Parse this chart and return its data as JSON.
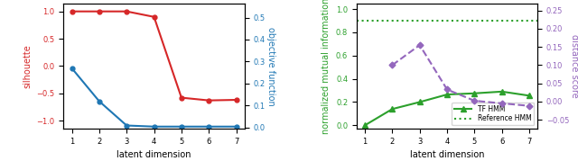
{
  "left": {
    "x": [
      1,
      2,
      3,
      4,
      5,
      6,
      7
    ],
    "silhouette": [
      1.0,
      1.0,
      1.0,
      0.9,
      -0.58,
      -0.63,
      -0.62
    ],
    "objective": [
      0.27,
      0.12,
      0.01,
      0.005,
      0.005,
      0.005,
      0.005
    ],
    "silhouette_color": "#d62728",
    "objective_color": "#1f77b4",
    "silhouette_ylim": [
      -1.15,
      1.15
    ],
    "objective_ylim": [
      -0.005,
      0.565
    ],
    "silhouette_yticks": [
      -1.0,
      -0.5,
      0.0,
      0.5,
      1.0
    ],
    "objective_yticks": [
      0.0,
      0.1,
      0.2,
      0.3,
      0.4,
      0.5
    ],
    "xlabel": "latent dimension",
    "ylabel_left": "silhouette",
    "ylabel_right": "objective function"
  },
  "right": {
    "x": [
      1,
      2,
      3,
      4,
      5,
      6,
      7
    ],
    "nmi": [
      0.0,
      0.14,
      0.2,
      0.265,
      0.275,
      0.29,
      0.255
    ],
    "distance": [
      null,
      0.1,
      0.155,
      0.033,
      0.002,
      -0.005,
      -0.012
    ],
    "reference_nmi": 0.9,
    "nmi_color": "#2ca02c",
    "distance_color": "#9467bd",
    "reference_color": "#2ca02c",
    "nmi_ylim": [
      -0.03,
      1.05
    ],
    "distance_ylim": [
      -0.075,
      0.27
    ],
    "nmi_yticks": [
      0.0,
      0.2,
      0.4,
      0.6,
      0.8,
      1.0
    ],
    "distance_yticks": [
      -0.05,
      0.0,
      0.05,
      0.1,
      0.15,
      0.2,
      0.25
    ],
    "xlabel": "latent dimension",
    "ylabel_left": "normalized mutual information",
    "ylabel_right": "distance score",
    "legend_tf": "TF HMM",
    "legend_ref": "Reference HMM"
  }
}
